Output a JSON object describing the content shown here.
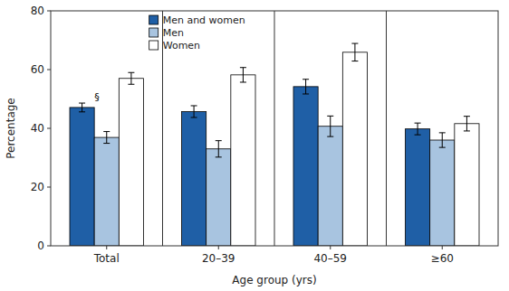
{
  "chart_data": {
    "type": "bar",
    "categories": [
      "Total",
      "20–39",
      "40–59",
      "≥60"
    ],
    "series": [
      {
        "name": "Men and women",
        "color": "#1f5fa6",
        "values": [
          47.1,
          45.7,
          54.2,
          39.8
        ],
        "errors": [
          1.5,
          2.0,
          2.5,
          2.0
        ]
      },
      {
        "name": "Men",
        "color": "#a8c4e0",
        "values": [
          36.9,
          33.0,
          40.7,
          36.0
        ],
        "errors": [
          2.0,
          2.8,
          3.5,
          2.5
        ]
      },
      {
        "name": "Women",
        "color": "#ffffff",
        "values": [
          57.0,
          58.2,
          65.9,
          41.6
        ],
        "errors": [
          2.0,
          2.5,
          3.0,
          2.5
        ]
      }
    ],
    "xlabel": "Age group (yrs)",
    "ylabel": "Percentage",
    "annotation": "§",
    "ylim": [
      0,
      80
    ],
    "yticks": [
      0,
      20,
      40,
      60,
      80
    ],
    "grid": false,
    "legend": "upper left"
  }
}
